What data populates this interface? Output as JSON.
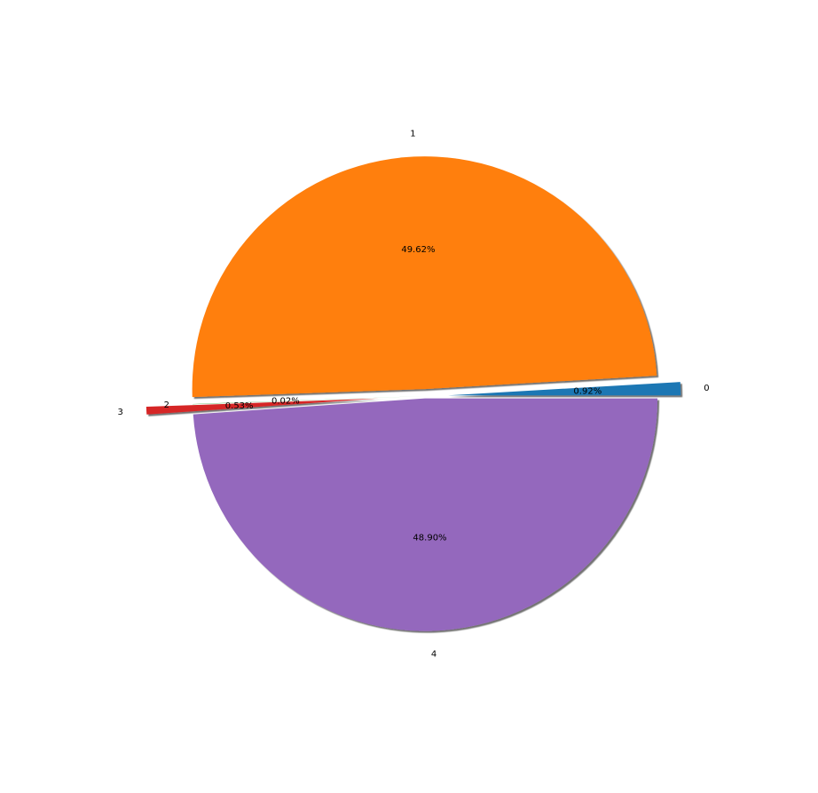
{
  "chart_data": {
    "type": "pie",
    "title": "",
    "categories": [
      "0",
      "1",
      "2",
      "3",
      "4"
    ],
    "values": [
      0.92,
      49.62,
      0.02,
      0.53,
      48.9
    ],
    "percent_labels": [
      "0.92%",
      "49.62%",
      "0.02%",
      "0.53%",
      "48.90%"
    ],
    "explode": [
      0.1,
      0.03,
      0.0,
      0.2,
      0.01
    ],
    "colors": [
      "#1f77b4",
      "#ff7f0e",
      "#2ca02c",
      "#d62728",
      "#9467bd"
    ],
    "start_angle_deg": 0,
    "direction": "counterclockwise",
    "shadow": true,
    "legend": "none"
  }
}
